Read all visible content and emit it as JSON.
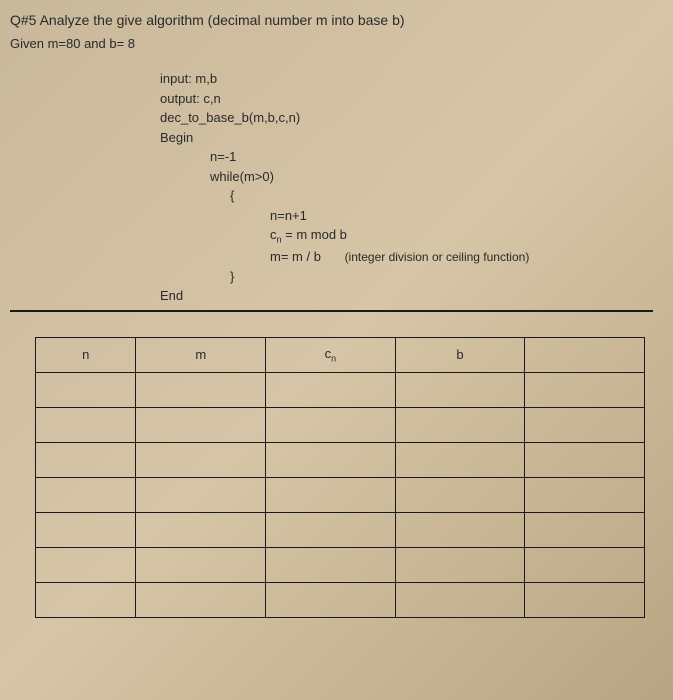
{
  "title": "Q#5 Analyze the give algorithm (decimal number m into base b)",
  "given": "Given m=80 and b= 8",
  "algo": {
    "l1": "input: m,b",
    "l2": "output: c,n",
    "l3": "dec_to_base_b(m,b,c,n)",
    "l4": "Begin",
    "l5": "n=-1",
    "l6": "while(m>0)",
    "l7": "{",
    "l8": "n=n+1",
    "l9a": "c",
    "l9sub": "n",
    "l9b": " = m mod b",
    "l10": "m= m / b",
    "l10note": "(integer division or ceiling function)",
    "l11": "}",
    "l12": "End"
  },
  "table": {
    "headers": {
      "n": "n",
      "m": "m",
      "cn_a": "c",
      "cn_sub": "n",
      "b": "b",
      "extra": ""
    },
    "rows": 7,
    "colors": {
      "border": "#1a1a1a",
      "background": "#cdbda0"
    }
  }
}
